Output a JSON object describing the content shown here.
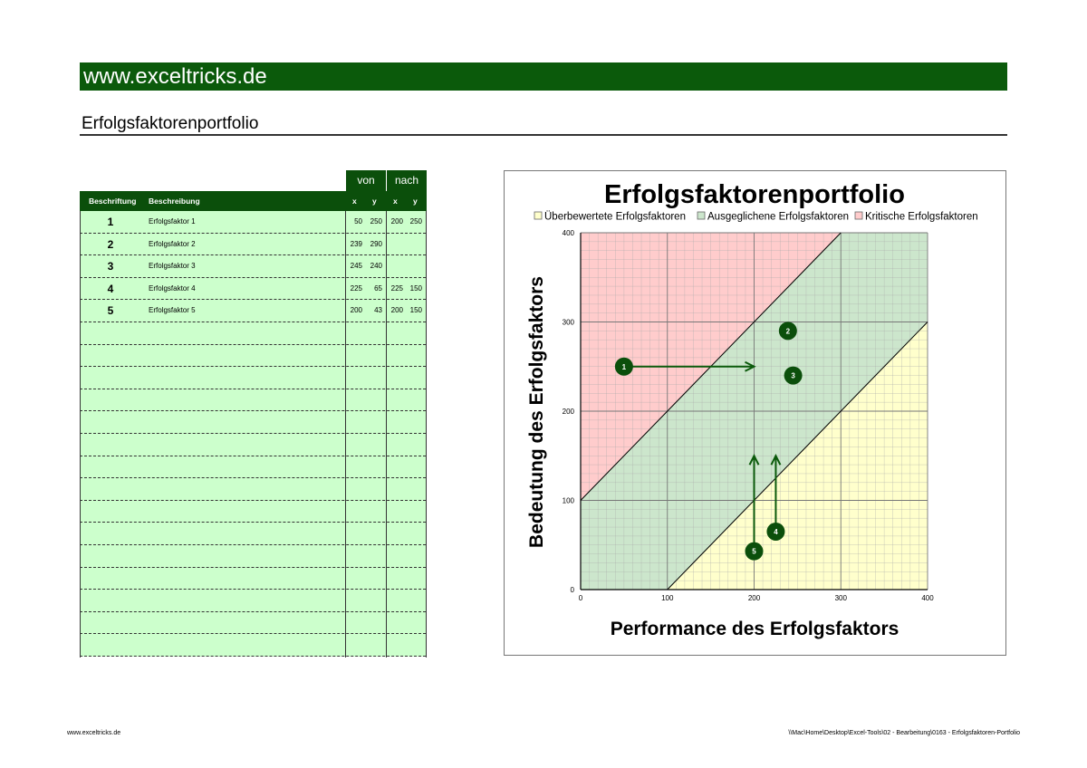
{
  "header": {
    "site": "www.exceltricks.de",
    "subtitle": "Erfolgsfaktorenportfolio"
  },
  "table": {
    "group_from": "von",
    "group_to": "nach",
    "col_label": "Beschriftung",
    "col_desc": "Beschreibung",
    "col_x": "x",
    "col_y": "y",
    "rows": [
      {
        "label": "1",
        "desc": "Erfolgsfaktor 1",
        "x1": "50",
        "y1": "250",
        "x2": "200",
        "y2": "250"
      },
      {
        "label": "2",
        "desc": "Erfolgsfaktor 2",
        "x1": "239",
        "y1": "290",
        "x2": "",
        "y2": ""
      },
      {
        "label": "3",
        "desc": "Erfolgsfaktor 3",
        "x1": "245",
        "y1": "240",
        "x2": "",
        "y2": ""
      },
      {
        "label": "4",
        "desc": "Erfolgsfaktor 4",
        "x1": "225",
        "y1": "65",
        "x2": "225",
        "y2": "150"
      },
      {
        "label": "5",
        "desc": "Erfolgsfaktor 5",
        "x1": "200",
        "y1": "43",
        "x2": "200",
        "y2": "150"
      }
    ],
    "empty_rows": 15
  },
  "chart_data": {
    "type": "scatter",
    "title": "Erfolgsfaktorenportfolio",
    "xlabel": "Performance des Erfolgsfaktors",
    "ylabel": "Bedeutung des Erfolgsfaktors",
    "xlim": [
      0,
      400
    ],
    "ylim": [
      0,
      400
    ],
    "xticks": [
      0,
      100,
      200,
      300,
      400
    ],
    "yticks": [
      0,
      100,
      200,
      300,
      400
    ],
    "grid": true,
    "legend_position": "top",
    "legend": [
      {
        "name": "Überbewertete Erfolgsfaktoren",
        "color": "#ffffcc"
      },
      {
        "name": "Ausgeglichene Erfolgsfaktoren",
        "color": "#cce6cc"
      },
      {
        "name": "Kritische Erfolgsfaktoren",
        "color": "#ffcccc"
      }
    ],
    "zones": {
      "critical": {
        "color": "#ffcccc",
        "polygon": [
          [
            0,
            100
          ],
          [
            0,
            400
          ],
          [
            300,
            400
          ]
        ]
      },
      "balanced": {
        "color": "#cce6cc",
        "polygon": [
          [
            0,
            0
          ],
          [
            0,
            100
          ],
          [
            300,
            400
          ],
          [
            400,
            400
          ],
          [
            400,
            300
          ],
          [
            100,
            0
          ]
        ]
      },
      "overrated": {
        "color": "#ffffcc",
        "polygon": [
          [
            100,
            0
          ],
          [
            400,
            0
          ],
          [
            400,
            300
          ]
        ]
      }
    },
    "boundaries": [
      [
        [
          0,
          100
        ],
        [
          300,
          400
        ]
      ],
      [
        [
          100,
          0
        ],
        [
          400,
          300
        ]
      ]
    ],
    "points": [
      {
        "label": "1",
        "x": 50,
        "y": 250
      },
      {
        "label": "2",
        "x": 239,
        "y": 290
      },
      {
        "label": "3",
        "x": 245,
        "y": 240
      },
      {
        "label": "4",
        "x": 225,
        "y": 65
      },
      {
        "label": "5",
        "x": 200,
        "y": 43
      }
    ],
    "arrows": [
      {
        "from": [
          50,
          250
        ],
        "to": [
          200,
          250
        ]
      },
      {
        "from": [
          225,
          65
        ],
        "to": [
          225,
          150
        ]
      },
      {
        "from": [
          200,
          43
        ],
        "to": [
          200,
          150
        ]
      }
    ],
    "marker_color": "#0b4f0b",
    "arrow_color": "#0b5a0b"
  },
  "footer": {
    "left": "www.exceltricks.de",
    "right": "\\\\Mac\\Home\\Desktop\\Excel-Tools\\02 - Bearbeitung\\0163 - Erfolgsfaktoren-Portfolio"
  }
}
